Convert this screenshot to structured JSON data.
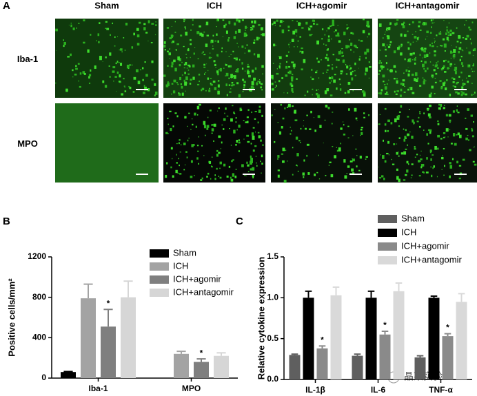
{
  "panel_a": {
    "label": "A",
    "columns": [
      "Sham",
      "ICH",
      "ICH+agomir",
      "ICH+antagomir"
    ],
    "rows": [
      "Iba-1",
      "MPO"
    ]
  },
  "chart_data": [
    {
      "type": "bar",
      "panel_label": "B",
      "ylabel": "Positive cells/mm²",
      "categories": [
        "Iba-1",
        "MPO"
      ],
      "ylim": [
        0,
        1200
      ],
      "yticks": [
        0,
        400,
        800,
        1200
      ],
      "series": [
        {
          "name": "Sham",
          "color": "#000000",
          "values": [
            60,
            null
          ],
          "errors": [
            5,
            null
          ]
        },
        {
          "name": "ICH",
          "color": "#a3a3a3",
          "values": [
            790,
            240
          ],
          "errors": [
            140,
            25
          ]
        },
        {
          "name": "ICH+agomir",
          "color": "#7f7f7f",
          "values": [
            510,
            160
          ],
          "errors": [
            170,
            30
          ],
          "annotations": [
            "*",
            "*"
          ]
        },
        {
          "name": "ICH+antagomir",
          "color": "#d6d6d6",
          "values": [
            800,
            220
          ],
          "errors": [
            160,
            30
          ]
        }
      ]
    },
    {
      "type": "bar",
      "panel_label": "C",
      "ylabel": "Relative cytokine expression",
      "categories": [
        "IL-1β",
        "IL-6",
        "TNF-α"
      ],
      "ylim": [
        0,
        1.5
      ],
      "yticks": [
        {
          "value": 0,
          "label": "0.0"
        },
        0.5,
        {
          "value": 1,
          "label": "1.0"
        },
        1.5
      ],
      "series": [
        {
          "name": "Sham",
          "color": "#5f5f5f",
          "values": [
            0.3,
            0.29,
            0.27
          ],
          "errors": [
            0.01,
            0.02,
            0.02
          ]
        },
        {
          "name": "ICH",
          "color": "#000000",
          "values": [
            1.0,
            1.0,
            1.0
          ],
          "errors": [
            0.08,
            0.08,
            0.02
          ]
        },
        {
          "name": "ICH+agomir",
          "color": "#8a8a8a",
          "values": [
            0.38,
            0.55,
            0.53
          ],
          "errors": [
            0.03,
            0.04,
            0.03
          ],
          "annotations": [
            "*",
            "*",
            "*"
          ]
        },
        {
          "name": "ICH+antagomir",
          "color": "#d9d9d9",
          "values": [
            1.03,
            1.08,
            0.95
          ],
          "errors": [
            0.1,
            0.1,
            0.1
          ]
        }
      ]
    }
  ],
  "watermark": "晶莱实验"
}
